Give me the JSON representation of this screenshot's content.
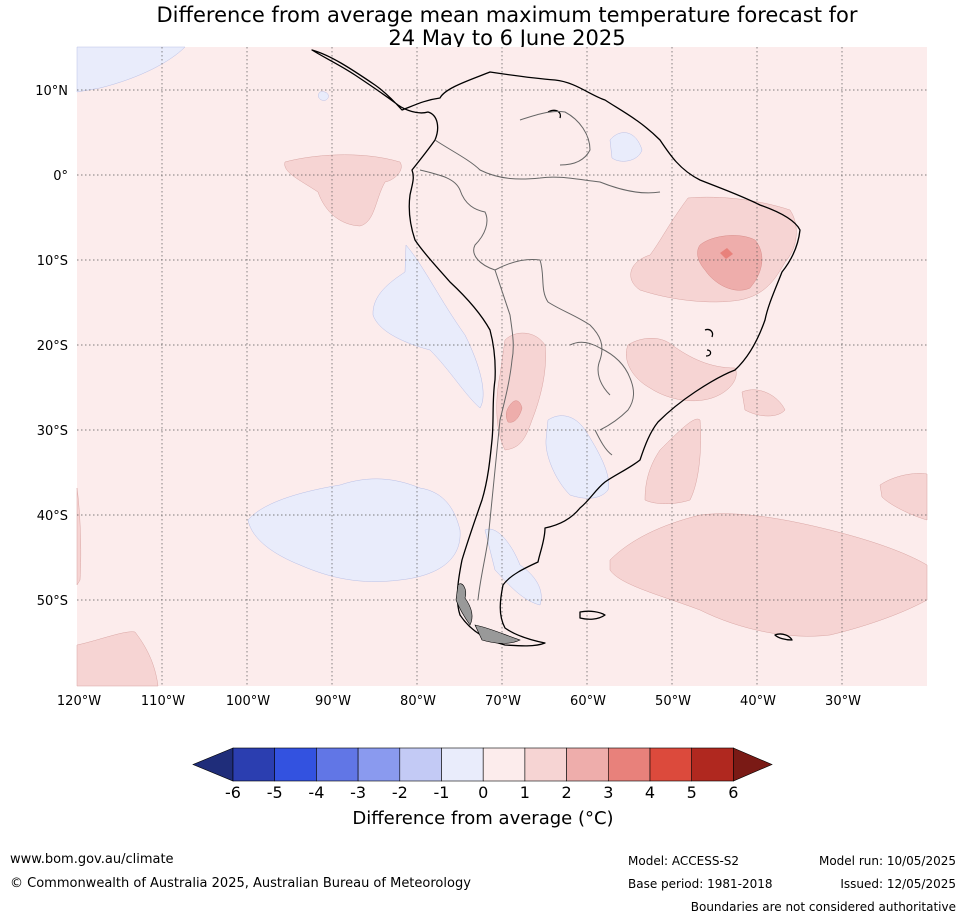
{
  "title": {
    "line1": "Difference from average mean maximum temperature forecast for",
    "line2": "24 May to 6 June 2025"
  },
  "map": {
    "lat_labels": [
      "10°N",
      "0°",
      "10°S",
      "20°S",
      "30°S",
      "40°S",
      "50°S"
    ],
    "lon_labels": [
      "120°W",
      "110°W",
      "100°W",
      "90°W",
      "80°W",
      "70°W",
      "60°W",
      "50°W",
      "40°W",
      "30°W"
    ]
  },
  "colorbar": {
    "ticks": [
      "-6",
      "-5",
      "-4",
      "-3",
      "-2",
      "-1",
      "0",
      "1",
      "2",
      "3",
      "4",
      "5",
      "6"
    ],
    "colors": [
      "#1f2d7a",
      "#2b3eb0",
      "#3352e0",
      "#6176e6",
      "#8a9aef",
      "#c3caf5",
      "#e9ecfb",
      "#fcecec",
      "#f6d4d3",
      "#eeadab",
      "#e8817b",
      "#dc4a3c",
      "#b0281f",
      "#7a1a15"
    ],
    "label": "Difference from average (°C)"
  },
  "footer": {
    "url": "www.bom.gov.au/climate",
    "copyright": "© Commonwealth of Australia 2025, Australian Bureau of Meteorology",
    "model": "Model: ACCESS-S2",
    "base_period": "Base period: 1981-2018",
    "model_run": "Model run: 10/05/2025",
    "issued": "Issued: 12/05/2025",
    "disclaimer": "Boundaries are not considered authoritative"
  }
}
